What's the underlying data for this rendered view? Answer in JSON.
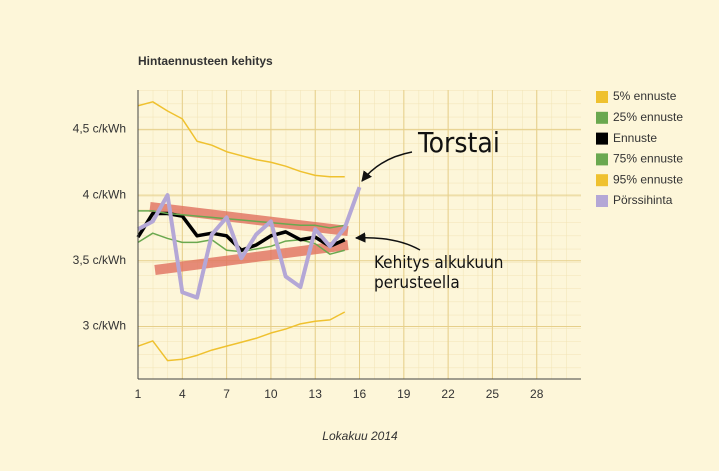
{
  "chart_data": {
    "type": "line",
    "title": "Hintaennusteen kehitys",
    "xlabel": "Lokakuu 2014",
    "x": [
      1,
      2,
      3,
      4,
      5,
      6,
      7,
      8,
      9,
      10,
      11,
      12,
      13,
      14,
      15,
      16
    ],
    "series": [
      {
        "name": "5% ennuste",
        "color": "#efc12f",
        "width": 1.5,
        "values": [
          2.85,
          2.89,
          2.74,
          2.75,
          2.78,
          2.82,
          2.85,
          2.88,
          2.91,
          2.95,
          2.98,
          3.02,
          3.04,
          3.05,
          3.11,
          null
        ]
      },
      {
        "name": "25% ennuste",
        "color": "#6aa84f",
        "width": 1.5,
        "values": [
          3.64,
          3.71,
          3.67,
          3.64,
          3.64,
          3.66,
          3.58,
          3.57,
          3.59,
          3.61,
          3.65,
          3.66,
          3.63,
          3.55,
          3.58,
          null
        ]
      },
      {
        "name": "Ennuste",
        "color": "#000000",
        "width": 3.5,
        "values": [
          3.68,
          3.86,
          3.86,
          3.84,
          3.69,
          3.71,
          3.69,
          3.58,
          3.62,
          3.69,
          3.72,
          3.66,
          3.68,
          3.61,
          3.66,
          null
        ]
      },
      {
        "name": "75% ennuste",
        "color": "#6aa84f",
        "width": 1.5,
        "values": [
          3.88,
          3.88,
          3.86,
          3.85,
          3.84,
          3.83,
          3.82,
          3.81,
          3.8,
          3.79,
          3.78,
          3.77,
          3.77,
          3.75,
          3.77,
          null
        ]
      },
      {
        "name": "95% ennuste",
        "color": "#efc12f",
        "width": 1.5,
        "values": [
          4.68,
          4.71,
          4.64,
          4.58,
          4.41,
          4.38,
          4.33,
          4.3,
          4.27,
          4.25,
          4.22,
          4.18,
          4.15,
          4.14,
          4.14,
          null
        ]
      },
      {
        "name": "Pörssihinta",
        "color": "#b4a7d6",
        "width": 4,
        "values": [
          3.74,
          3.8,
          4.0,
          3.26,
          3.22,
          3.7,
          3.83,
          3.52,
          3.7,
          3.8,
          3.38,
          3.3,
          3.74,
          3.61,
          3.75,
          4.06
        ]
      }
    ],
    "xlim": [
      1,
      31
    ],
    "xticks": [
      1,
      4,
      7,
      10,
      13,
      16,
      19,
      22,
      25,
      28
    ],
    "ylim": [
      2.6,
      4.8
    ],
    "yticks": [
      {
        "value": 3,
        "label": "3 c/kWh"
      },
      {
        "value": 3.5,
        "label": "3,5 c/kWh"
      },
      {
        "value": 4,
        "label": "4 c/kWh"
      },
      {
        "value": 4.5,
        "label": "4,5 c/kWh"
      }
    ],
    "grid": true,
    "legend": "right",
    "annotations": [
      {
        "text": "Torstai"
      },
      {
        "lines": [
          "Kehitys alkukuun",
          "perusteella"
        ]
      }
    ]
  }
}
